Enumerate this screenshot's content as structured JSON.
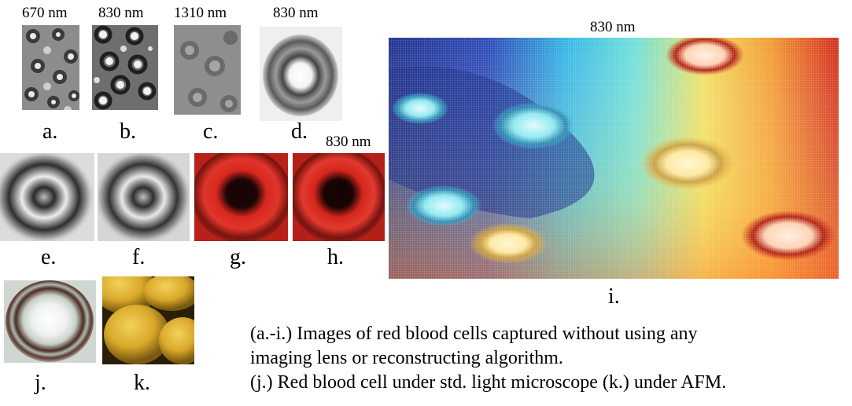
{
  "wavelengths": {
    "a": "670 nm",
    "b": "830 nm",
    "c": "1310 nm",
    "d": "830 nm",
    "h": "830 nm",
    "i": "830 nm"
  },
  "labels": {
    "a": "a.",
    "b": "b.",
    "c": "c.",
    "d": "d.",
    "e": "e.",
    "f": "f.",
    "g": "g.",
    "h": "h.",
    "i": "i.",
    "j": "j.",
    "k": "k."
  },
  "caption": {
    "line1": "(a.-i.) Images of red blood cells captured without using any",
    "line2": "imaging lens or reconstructing algorithm.",
    "line3": "(j.) Red blood cell under std. light microscope (k.) under AFM."
  }
}
